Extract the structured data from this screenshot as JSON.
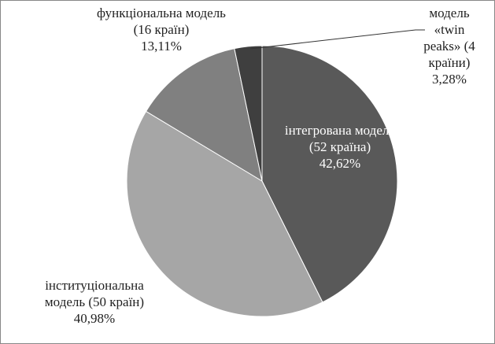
{
  "chart_data": {
    "type": "pie",
    "categories": [
      "інтегрована модель (52  країна)",
      "інституціональна модель (50 країн)",
      "функціональна модель (16 країн)",
      "модель «twin peaks» (4 країни)"
    ],
    "values": [
      42.62,
      40.98,
      13.11,
      3.28
    ],
    "value_labels": [
      "42,62%",
      "40,98%",
      "13,11%",
      "3,28%"
    ],
    "colors": [
      "#595959",
      "#a6a6a6",
      "#808080",
      "#3f3f3f"
    ]
  }
}
